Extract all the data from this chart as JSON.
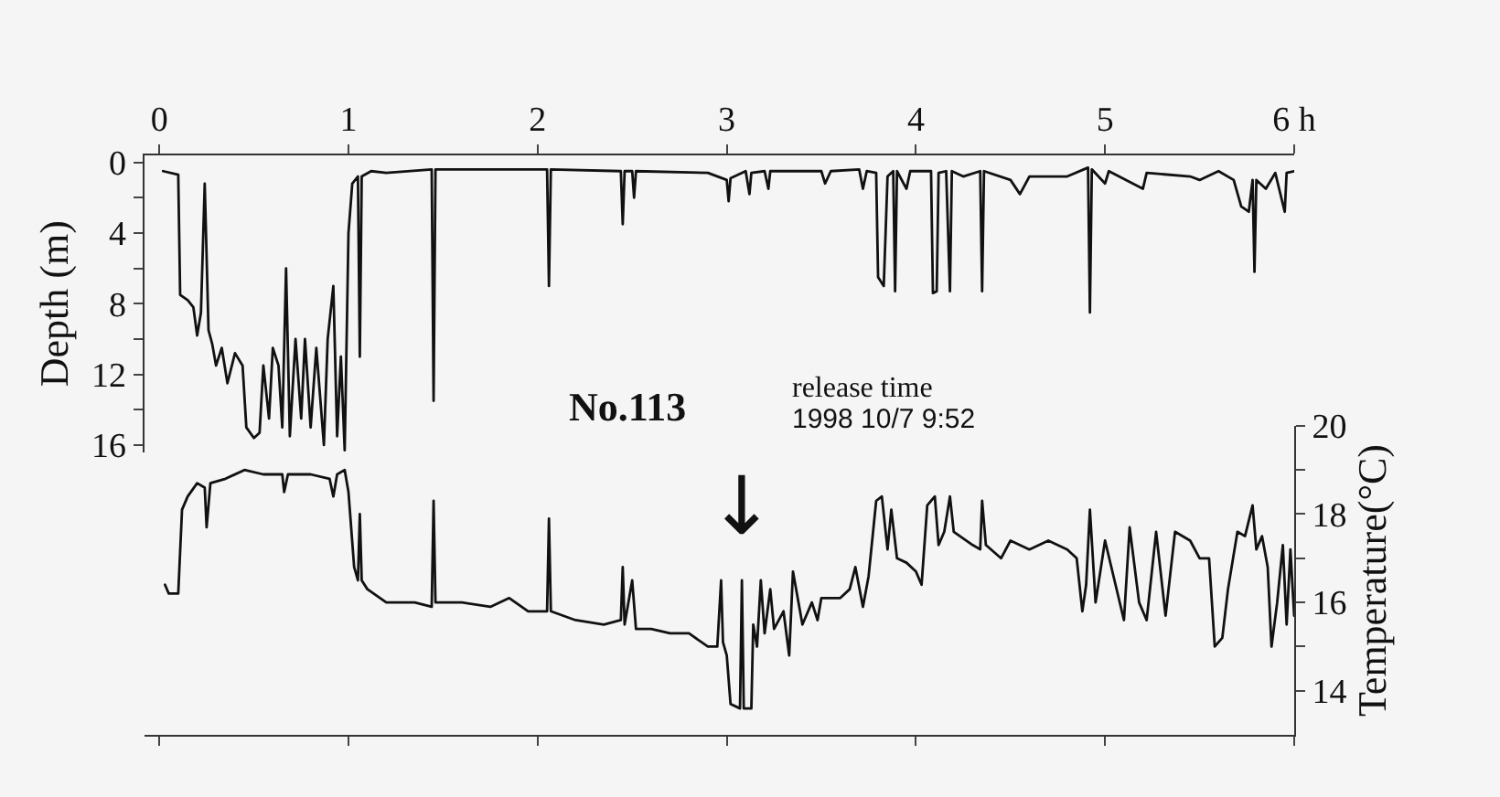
{
  "chart_data": [
    {
      "type": "line",
      "ylabel": "Depth (m)",
      "xlim": [
        -0.08,
        6.0
      ],
      "xticks": [
        0,
        1,
        2,
        3,
        4,
        5,
        {
          "value": 6,
          "label": "6 h"
        }
      ],
      "ylim": [
        16.4,
        -0.4
      ],
      "yticks": [
        0,
        {
          "value": 2,
          "label": null
        },
        4,
        {
          "value": 6,
          "label": null
        },
        8,
        {
          "value": 10,
          "label": null
        },
        12,
        {
          "value": 14,
          "label": null
        },
        16
      ],
      "marker": "none",
      "line_style": "solid",
      "annotations": [
        "No.113",
        "release time",
        "1998 10/7 9:52"
      ],
      "series": [
        {
          "color": "#111111",
          "x": [
            0.02,
            0.1,
            0.11,
            0.15,
            0.18,
            0.2,
            0.22,
            0.24,
            0.26,
            0.28,
            0.3,
            0.33,
            0.36,
            0.4,
            0.44,
            0.46,
            0.5,
            0.53,
            0.55,
            0.58,
            0.6,
            0.63,
            0.65,
            0.67,
            0.69,
            0.72,
            0.75,
            0.77,
            0.8,
            0.83,
            0.87,
            0.89,
            0.92,
            0.94,
            0.96,
            0.98,
            1.0,
            1.02,
            1.05,
            1.06,
            1.07,
            1.12,
            1.2,
            1.44,
            1.45,
            1.46,
            1.7,
            2.05,
            2.06,
            2.07,
            2.44,
            2.45,
            2.46,
            2.5,
            2.51,
            2.52,
            2.9,
            3.0,
            3.01,
            3.02,
            3.1,
            3.12,
            3.13,
            3.2,
            3.22,
            3.23,
            3.5,
            3.52,
            3.55,
            3.7,
            3.72,
            3.74,
            3.79,
            3.8,
            3.83,
            3.85,
            3.88,
            3.89,
            3.9,
            3.95,
            3.97,
            4.08,
            4.09,
            4.11,
            4.12,
            4.16,
            4.18,
            4.19,
            4.25,
            4.34,
            4.35,
            4.36,
            4.5,
            4.55,
            4.6,
            4.8,
            4.91,
            4.92,
            4.93,
            5.0,
            5.02,
            5.2,
            5.22,
            5.45,
            5.5,
            5.6,
            5.68,
            5.72,
            5.76,
            5.78,
            5.79,
            5.8,
            5.85,
            5.9,
            5.95,
            5.96,
            6.0
          ],
          "values": [
            0.5,
            0.7,
            7.5,
            7.8,
            8.2,
            9.8,
            8.5,
            1.2,
            9.5,
            10.3,
            11.5,
            10.5,
            12.5,
            10.8,
            11.5,
            15.0,
            15.6,
            15.3,
            11.5,
            14.5,
            10.5,
            11.5,
            15.0,
            6.0,
            15.5,
            10.0,
            14.5,
            10.0,
            15.0,
            10.5,
            16.0,
            10.0,
            7.0,
            15.5,
            11.0,
            16.3,
            4.0,
            1.2,
            0.8,
            11.0,
            0.8,
            0.5,
            0.6,
            0.4,
            13.5,
            0.4,
            0.4,
            0.4,
            7.0,
            0.4,
            0.5,
            3.5,
            0.5,
            0.5,
            2.0,
            0.5,
            0.6,
            1.0,
            2.2,
            0.9,
            0.5,
            1.8,
            0.6,
            0.5,
            1.5,
            0.5,
            0.5,
            1.2,
            0.5,
            0.4,
            1.5,
            0.5,
            0.6,
            6.5,
            7.0,
            0.8,
            0.5,
            7.3,
            0.5,
            1.5,
            0.5,
            0.5,
            7.4,
            7.3,
            0.6,
            0.5,
            7.3,
            0.5,
            0.8,
            0.5,
            7.3,
            0.5,
            1.0,
            1.8,
            0.8,
            0.8,
            0.3,
            8.5,
            0.4,
            1.2,
            0.5,
            1.5,
            0.6,
            0.8,
            1.0,
            0.5,
            1.0,
            2.5,
            2.8,
            1.0,
            6.2,
            1.0,
            1.5,
            0.6,
            2.8,
            0.6,
            0.5
          ]
        }
      ]
    },
    {
      "type": "line",
      "y2label": "Temperature(°C)",
      "xlim": [
        -0.08,
        6.0
      ],
      "xticks": [
        0,
        1,
        2,
        3,
        4,
        5,
        6
      ],
      "tick_labels": "y",
      "y2lim": [
        13.0,
        20.0
      ],
      "y2ticks": [
        14,
        {
          "value": 15,
          "label": null
        },
        16,
        {
          "value": 17,
          "label": null
        },
        18,
        {
          "value": 19,
          "label": null
        },
        20
      ],
      "marker": "none",
      "line_style": "solid",
      "annotations": [
        "↓"
      ],
      "series": [
        {
          "color": "#111111",
          "axis": "y2",
          "x": [
            0.03,
            0.05,
            0.1,
            0.12,
            0.15,
            0.2,
            0.24,
            0.25,
            0.27,
            0.35,
            0.45,
            0.55,
            0.65,
            0.66,
            0.68,
            0.8,
            0.9,
            0.92,
            0.94,
            0.98,
            1.0,
            1.03,
            1.05,
            1.06,
            1.07,
            1.1,
            1.2,
            1.35,
            1.44,
            1.45,
            1.46,
            1.6,
            1.75,
            1.85,
            1.95,
            2.05,
            2.06,
            2.07,
            2.2,
            2.35,
            2.44,
            2.45,
            2.46,
            2.5,
            2.52,
            2.6,
            2.7,
            2.8,
            2.9,
            2.95,
            2.97,
            2.98,
            3.0,
            3.02,
            3.07,
            3.08,
            3.09,
            3.13,
            3.14,
            3.16,
            3.18,
            3.2,
            3.23,
            3.25,
            3.3,
            3.33,
            3.35,
            3.4,
            3.45,
            3.48,
            3.5,
            3.6,
            3.65,
            3.68,
            3.72,
            3.75,
            3.79,
            3.82,
            3.85,
            3.87,
            3.9,
            3.95,
            4.0,
            4.03,
            4.06,
            4.1,
            4.12,
            4.15,
            4.18,
            4.2,
            4.3,
            4.34,
            4.35,
            4.37,
            4.45,
            4.5,
            4.6,
            4.7,
            4.8,
            4.85,
            4.88,
            4.9,
            4.92,
            4.95,
            5.0,
            5.05,
            5.1,
            5.13,
            5.18,
            5.22,
            5.27,
            5.32,
            5.37,
            5.45,
            5.5,
            5.55,
            5.58,
            5.62,
            5.65,
            5.7,
            5.74,
            5.78,
            5.8,
            5.83,
            5.86,
            5.88,
            5.91,
            5.94,
            5.96,
            5.98,
            6.0
          ],
          "values": [
            16.4,
            16.2,
            16.2,
            18.1,
            18.4,
            18.7,
            18.6,
            17.7,
            18.7,
            18.8,
            19.0,
            18.9,
            18.9,
            18.5,
            18.9,
            18.9,
            18.8,
            18.4,
            18.9,
            19.0,
            18.5,
            16.8,
            16.5,
            18.0,
            16.5,
            16.3,
            16.0,
            16.0,
            15.9,
            18.3,
            16.0,
            16.0,
            15.9,
            16.1,
            15.8,
            15.8,
            17.9,
            15.8,
            15.6,
            15.5,
            15.6,
            16.8,
            15.5,
            16.5,
            15.4,
            15.4,
            15.3,
            15.3,
            15.0,
            15.0,
            16.5,
            15.1,
            14.8,
            13.7,
            13.6,
            16.5,
            13.6,
            13.6,
            15.5,
            15.0,
            16.5,
            15.3,
            16.3,
            15.4,
            15.8,
            14.8,
            16.7,
            15.5,
            16.0,
            15.6,
            16.1,
            16.1,
            16.3,
            16.8,
            15.9,
            16.6,
            18.3,
            18.4,
            17.2,
            18.1,
            17.0,
            16.9,
            16.7,
            16.4,
            18.2,
            18.4,
            17.3,
            17.6,
            18.4,
            17.6,
            17.3,
            17.2,
            18.3,
            17.3,
            17.0,
            17.4,
            17.2,
            17.4,
            17.2,
            17.0,
            15.8,
            16.4,
            18.1,
            16.0,
            17.4,
            16.5,
            15.6,
            17.7,
            16.0,
            15.6,
            17.6,
            15.7,
            17.6,
            17.4,
            17.0,
            17.0,
            15.0,
            15.2,
            16.3,
            17.6,
            17.5,
            18.2,
            17.2,
            17.5,
            16.8,
            15.0,
            16.0,
            17.3,
            15.5,
            17.2,
            15.7
          ]
        }
      ]
    }
  ]
}
